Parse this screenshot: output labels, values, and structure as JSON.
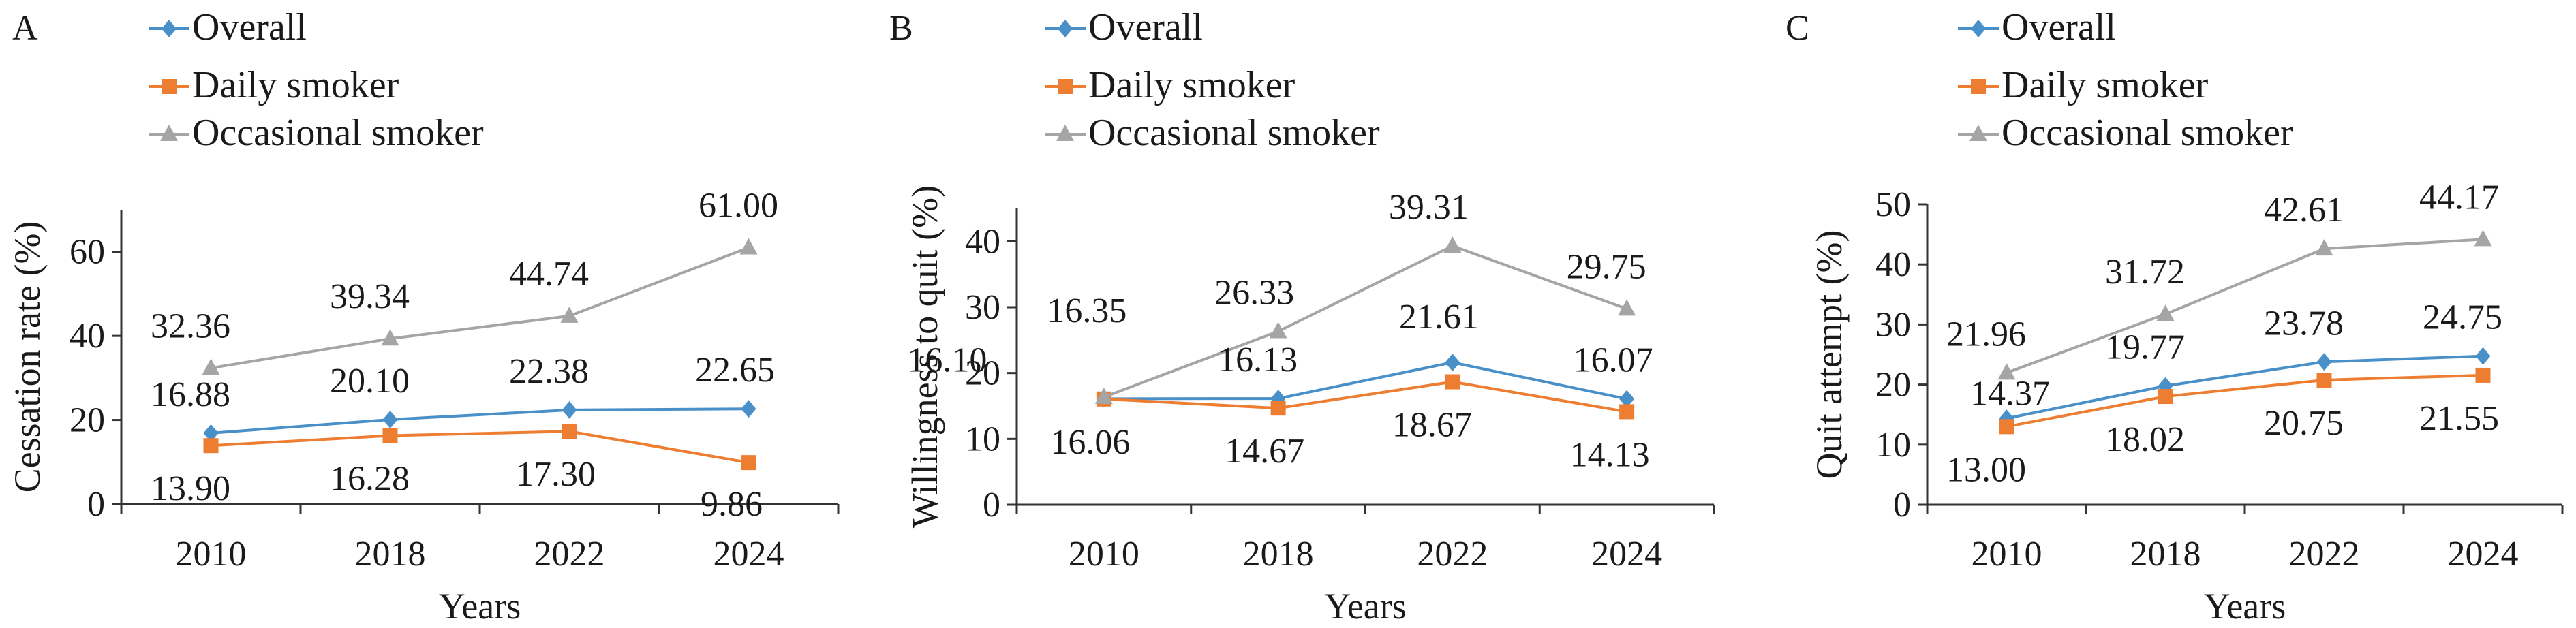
{
  "figure": {
    "title": ""
  },
  "chart_data": [
    {
      "panel": "A",
      "type": "line",
      "categories": [
        "2010",
        "2018",
        "2022",
        "2024"
      ],
      "ylim": [
        0,
        70
      ],
      "yticks": [
        0,
        20,
        40,
        60
      ],
      "ylabel": "Cessation rate (%)",
      "xlabel": "Years",
      "legend": "top-left",
      "series": [
        {
          "name": "Overall",
          "color": "#4a90c8",
          "marker": "diamond",
          "values": [
            16.88,
            20.1,
            22.38,
            22.65
          ],
          "labels": [
            "16.88",
            "20.10",
            "22.38",
            "22.65"
          ]
        },
        {
          "name": "Daily smoker",
          "color": "#ed7d31",
          "marker": "square",
          "values": [
            13.9,
            16.28,
            17.3,
            9.86
          ],
          "labels": [
            "13.90",
            "16.28",
            "17.30",
            "9.86"
          ]
        },
        {
          "name": "Occasional smoker",
          "color": "#a5a5a5",
          "marker": "triangle",
          "values": [
            32.36,
            39.34,
            44.74,
            61.0
          ],
          "labels": [
            "32.36",
            "39.34",
            "44.74",
            "61.00"
          ]
        }
      ]
    },
    {
      "panel": "B",
      "type": "line",
      "categories": [
        "2010",
        "2018",
        "2022",
        "2024"
      ],
      "ylim": [
        0,
        45
      ],
      "yticks": [
        0,
        10,
        20,
        30,
        40
      ],
      "ylabel": "Willingness to quit (%)",
      "xlabel": "Years",
      "legend": "top-left",
      "series": [
        {
          "name": "Overall",
          "color": "#4a90c8",
          "marker": "diamond",
          "values": [
            16.1,
            16.13,
            21.61,
            16.07
          ],
          "labels": [
            "16.10",
            "16.13",
            "21.61",
            "16.07"
          ]
        },
        {
          "name": "Daily smoker",
          "color": "#ed7d31",
          "marker": "square",
          "values": [
            16.06,
            14.67,
            18.67,
            14.13
          ],
          "labels": [
            "16.06",
            "14.67",
            "18.67",
            "14.13"
          ]
        },
        {
          "name": "Occasional smoker",
          "color": "#a5a5a5",
          "marker": "triangle",
          "values": [
            16.35,
            26.33,
            39.31,
            29.75
          ],
          "labels": [
            "16.35",
            "26.33",
            "39.31",
            "29.75"
          ]
        }
      ]
    },
    {
      "panel": "C",
      "type": "line",
      "categories": [
        "2010",
        "2018",
        "2022",
        "2024"
      ],
      "ylim": [
        0,
        50
      ],
      "yticks": [
        0,
        10,
        20,
        30,
        40,
        50
      ],
      "ylabel": "Quit attempt (%)",
      "xlabel": "Years",
      "legend": "top-left",
      "series": [
        {
          "name": "Overall",
          "color": "#4a90c8",
          "marker": "diamond",
          "values": [
            14.37,
            19.77,
            23.78,
            24.75
          ],
          "labels": [
            "14.37",
            "19.77",
            "23.78",
            "24.75"
          ]
        },
        {
          "name": "Daily smoker",
          "color": "#ed7d31",
          "marker": "square",
          "values": [
            13.0,
            18.02,
            20.75,
            21.55
          ],
          "labels": [
            "13.00",
            "18.02",
            "20.75",
            "21.55"
          ]
        },
        {
          "name": "Occasional smoker",
          "color": "#a5a5a5",
          "marker": "triangle",
          "values": [
            21.96,
            31.72,
            42.61,
            44.17
          ],
          "labels": [
            "21.96",
            "31.72",
            "42.61",
            "44.17"
          ]
        }
      ]
    }
  ]
}
